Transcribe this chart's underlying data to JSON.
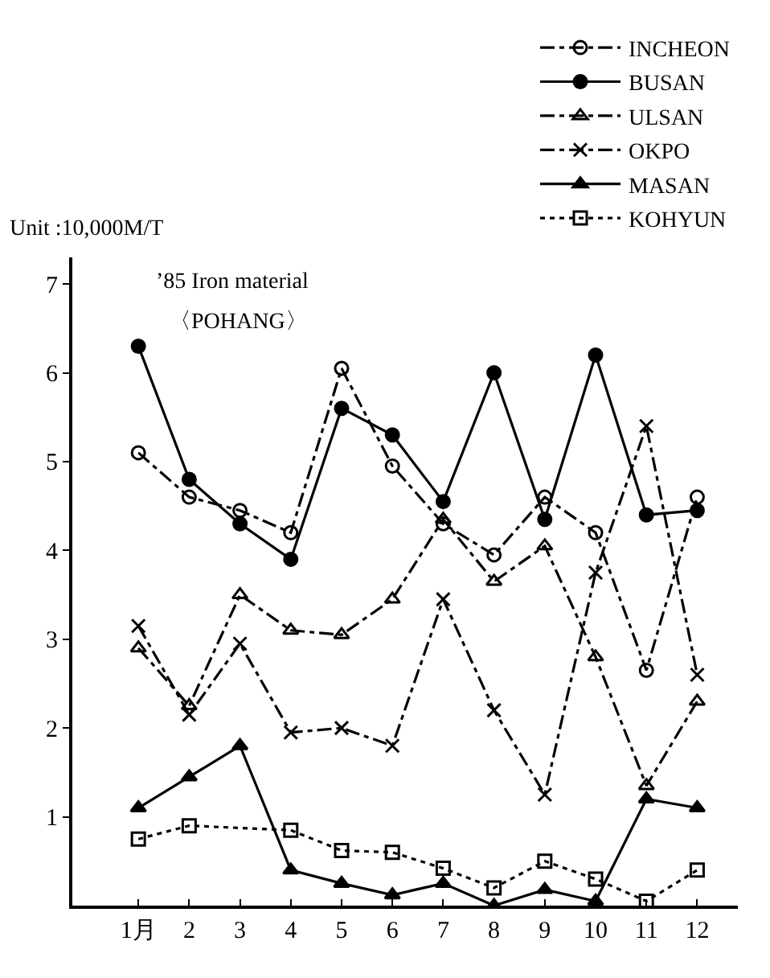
{
  "chart_data": {
    "type": "line",
    "title": "’85 Iron material",
    "subtitle": "〈POHANG〉",
    "ylabel": "Unit :10,000M/T",
    "categories": [
      "1月",
      "2",
      "3",
      "4",
      "5",
      "6",
      "7",
      "8",
      "9",
      "10",
      "11",
      "12"
    ],
    "ylim": [
      0,
      7.3
    ],
    "yticks": [
      1,
      2,
      3,
      4,
      5,
      6,
      7
    ],
    "legend": "top right",
    "series": [
      {
        "name": "INCHEON",
        "color": "#000000",
        "marker": "circle-open",
        "line_style": "dashed",
        "values": [
          5.1,
          4.6,
          4.45,
          4.2,
          6.05,
          4.95,
          4.3,
          3.95,
          4.6,
          4.2,
          2.65,
          4.6
        ]
      },
      {
        "name": "BUSAN",
        "color": "#000000",
        "marker": "circle",
        "line_style": "solid",
        "values": [
          6.3,
          4.8,
          4.3,
          3.9,
          5.6,
          5.3,
          4.55,
          6.0,
          4.35,
          6.2,
          4.4,
          4.45
        ]
      },
      {
        "name": "ULSAN",
        "color": "#000000",
        "marker": "triangle-open",
        "line_style": "dashed",
        "values": [
          2.9,
          2.25,
          3.5,
          3.1,
          3.05,
          3.45,
          4.35,
          3.65,
          4.05,
          2.8,
          1.35,
          2.3
        ]
      },
      {
        "name": "OKPO",
        "color": "#000000",
        "marker": "cross",
        "line_style": "dashed",
        "values": [
          3.15,
          2.15,
          2.95,
          1.95,
          2.0,
          1.8,
          3.45,
          2.2,
          1.25,
          3.75,
          5.4,
          2.6
        ]
      },
      {
        "name": "MASAN",
        "color": "#000000",
        "marker": "triangle",
        "line_style": "solid",
        "values": [
          1.1,
          1.45,
          1.8,
          0.4,
          0.25,
          0.12,
          0.25,
          0.0,
          0.18,
          0.05,
          1.2,
          1.1
        ]
      },
      {
        "name": "KOHYUN",
        "color": "#000000",
        "marker": "square-open",
        "line_style": "dotted",
        "values": [
          0.75,
          0.9,
          null,
          0.85,
          0.62,
          0.6,
          0.42,
          0.2,
          0.5,
          0.3,
          0.05,
          0.4
        ]
      }
    ]
  }
}
